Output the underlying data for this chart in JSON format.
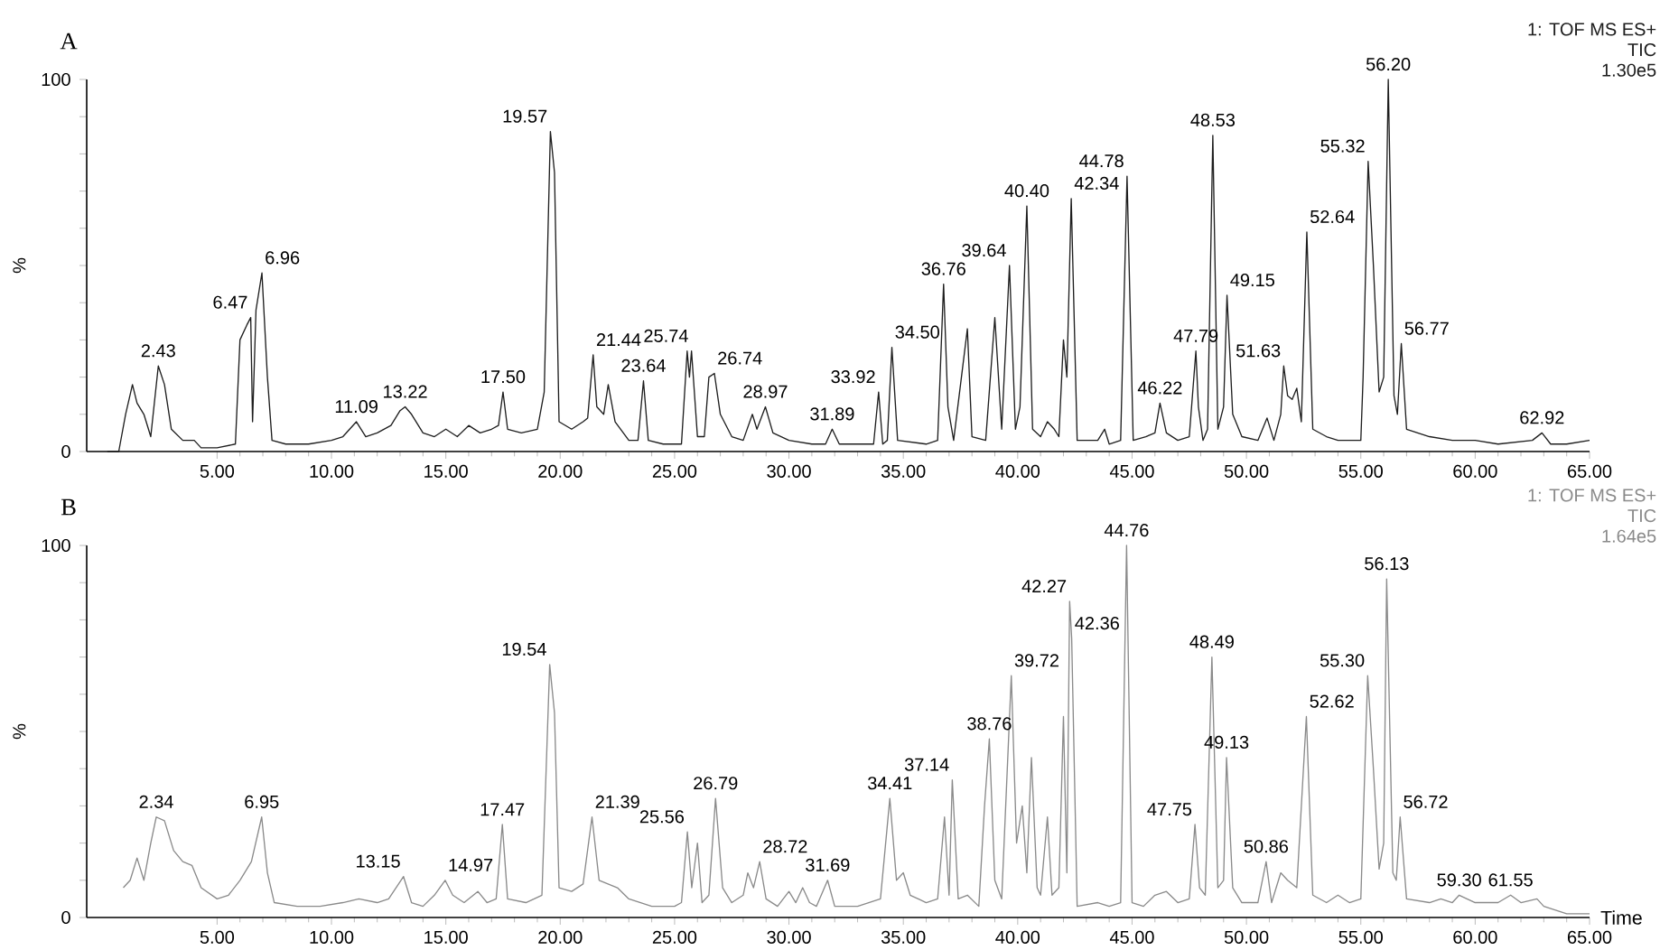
{
  "chart_data": [
    {
      "type": "line",
      "title": "A",
      "ylabel": "%",
      "color": "#1e1e1e",
      "xlim": [
        -0.7,
        65
      ],
      "ylim": [
        0,
        100
      ],
      "xticks": [
        {
          "value": 5,
          "label": "5.00"
        },
        {
          "value": 10,
          "label": "10.00"
        },
        {
          "value": 15,
          "label": "15.00"
        },
        {
          "value": 20,
          "label": "20.00"
        },
        {
          "value": 25,
          "label": "25.00"
        },
        {
          "value": 30,
          "label": "30.00"
        },
        {
          "value": 35,
          "label": "35.00"
        },
        {
          "value": 40,
          "label": "40.00"
        },
        {
          "value": 45,
          "label": "45.00"
        },
        {
          "value": 50,
          "label": "50.00"
        },
        {
          "value": 55,
          "label": "55.00"
        },
        {
          "value": 60,
          "label": "60.00"
        },
        {
          "value": 65,
          "label": "65.00"
        }
      ],
      "yticks": [
        0,
        {
          "value": 10,
          "label": null
        },
        {
          "value": 20,
          "label": null
        },
        {
          "value": 30,
          "label": null
        },
        {
          "value": 40,
          "label": null
        },
        {
          "value": 50,
          "label": null
        },
        {
          "value": 60,
          "label": null
        },
        {
          "value": 70,
          "label": null
        },
        {
          "value": 80,
          "label": null
        },
        {
          "value": 90,
          "label": null
        },
        100
      ],
      "x": [
        0.2,
        0.7,
        1.0,
        1.3,
        1.5,
        1.8,
        2.1,
        2.43,
        2.7,
        3.0,
        3.5,
        4.0,
        4.3,
        5.0,
        5.8,
        6.0,
        6.3,
        6.47,
        6.55,
        6.7,
        6.96,
        7.2,
        7.4,
        8.0,
        9.0,
        10.0,
        10.5,
        11.09,
        11.5,
        12.0,
        12.6,
        13.0,
        13.22,
        13.5,
        14.0,
        14.5,
        15.0,
        15.5,
        16.0,
        16.5,
        17.0,
        17.3,
        17.5,
        17.7,
        18.3,
        19.0,
        19.3,
        19.57,
        19.75,
        19.95,
        20.5,
        21.0,
        21.2,
        21.44,
        21.6,
        21.9,
        22.1,
        22.4,
        23.0,
        23.4,
        23.64,
        23.85,
        24.5,
        25.3,
        25.55,
        25.65,
        25.74,
        26.0,
        26.3,
        26.5,
        26.74,
        27.0,
        27.5,
        28.0,
        28.4,
        28.6,
        28.97,
        29.3,
        30.0,
        31.0,
        31.6,
        31.89,
        32.2,
        33.0,
        33.7,
        33.92,
        34.1,
        34.3,
        34.5,
        34.75,
        36.0,
        36.5,
        36.76,
        36.95,
        37.2,
        37.8,
        38.0,
        38.6,
        39.0,
        39.3,
        39.64,
        39.9,
        40.1,
        40.4,
        40.65,
        41.0,
        41.3,
        41.6,
        41.8,
        42.0,
        42.15,
        42.34,
        42.6,
        43.5,
        43.8,
        44.0,
        44.5,
        44.78,
        45.05,
        45.6,
        46.0,
        46.22,
        46.5,
        47.0,
        47.5,
        47.79,
        47.9,
        48.1,
        48.3,
        48.53,
        48.75,
        49.0,
        49.15,
        49.4,
        49.8,
        50.5,
        50.9,
        51.2,
        51.5,
        51.63,
        51.8,
        52.0,
        52.2,
        52.4,
        52.64,
        52.9,
        53.5,
        54.0,
        55.0,
        55.1,
        55.32,
        55.55,
        55.8,
        56.0,
        56.2,
        56.45,
        56.6,
        56.77,
        57.0,
        58.0,
        59.0,
        60.0,
        61.0,
        62.5,
        62.92,
        63.3,
        64.0,
        65.0
      ],
      "values": [
        0,
        0,
        10,
        18,
        13,
        10,
        4,
        23,
        18,
        6,
        3,
        3,
        1,
        1,
        2,
        30,
        34,
        36,
        8,
        38,
        48,
        20,
        3,
        2,
        2,
        3,
        4,
        8,
        4,
        5,
        7,
        11,
        12,
        10,
        5,
        4,
        6,
        4,
        7,
        5,
        6,
        7,
        16,
        6,
        5,
        6,
        16,
        86,
        75,
        8,
        6,
        8,
        9,
        26,
        12,
        10,
        18,
        8,
        3,
        3,
        19,
        3,
        2,
        2,
        27,
        20,
        27,
        4,
        4,
        20,
        21,
        10,
        4,
        3,
        10,
        6,
        12,
        5,
        3,
        2,
        2,
        6,
        2,
        2,
        2,
        16,
        2,
        3,
        28,
        3,
        2,
        3,
        45,
        12,
        3,
        33,
        4,
        3,
        36,
        6,
        50,
        6,
        12,
        66,
        6,
        4,
        8,
        6,
        4,
        30,
        20,
        68,
        3,
        3,
        6,
        2,
        3,
        74,
        3,
        4,
        5,
        13,
        5,
        3,
        4,
        27,
        12,
        3,
        6,
        85,
        6,
        12,
        42,
        10,
        4,
        3,
        9,
        3,
        10,
        23,
        15,
        14,
        17,
        8,
        59,
        6,
        4,
        3,
        3,
        20,
        78,
        50,
        16,
        20,
        100,
        15,
        10,
        29,
        6,
        4,
        3,
        3,
        2,
        3,
        5,
        2,
        2,
        3
      ],
      "annotations": [
        "1: TOF MS ES+",
        "TIC",
        "1.30e5",
        {
          "text": "2.43",
          "x": 2.43,
          "y": 23
        },
        {
          "text": "6.47",
          "x": 6.47,
          "y": 36
        },
        {
          "text": "6.96",
          "x": 6.96,
          "y": 48
        },
        {
          "text": "11.09",
          "x": 11.09,
          "y": 8
        },
        {
          "text": "13.22",
          "x": 13.22,
          "y": 12
        },
        {
          "text": "17.50",
          "x": 17.5,
          "y": 16
        },
        {
          "text": "19.57",
          "x": 19.57,
          "y": 86
        },
        {
          "text": "21.44",
          "x": 21.44,
          "y": 26
        },
        {
          "text": "23.64",
          "x": 23.64,
          "y": 19
        },
        {
          "text": "25.74",
          "x": 25.74,
          "y": 27
        },
        {
          "text": "26.74",
          "x": 26.74,
          "y": 21
        },
        {
          "text": "28.97",
          "x": 28.97,
          "y": 12
        },
        {
          "text": "31.89",
          "x": 31.89,
          "y": 6
        },
        {
          "text": "33.92",
          "x": 33.92,
          "y": 16
        },
        {
          "text": "34.50",
          "x": 34.5,
          "y": 28
        },
        {
          "text": "36.76",
          "x": 36.76,
          "y": 45
        },
        {
          "text": "39.64",
          "x": 39.64,
          "y": 50
        },
        {
          "text": "40.40",
          "x": 40.4,
          "y": 66
        },
        {
          "text": "42.34",
          "x": 42.34,
          "y": 68
        },
        {
          "text": "44.78",
          "x": 44.78,
          "y": 74
        },
        {
          "text": "46.22",
          "x": 46.22,
          "y": 13
        },
        {
          "text": "47.79",
          "x": 47.79,
          "y": 27
        },
        {
          "text": "48.53",
          "x": 48.53,
          "y": 85
        },
        {
          "text": "49.15",
          "x": 49.15,
          "y": 42
        },
        {
          "text": "51.63",
          "x": 51.63,
          "y": 23
        },
        {
          "text": "52.64",
          "x": 52.64,
          "y": 59
        },
        {
          "text": "55.32",
          "x": 55.32,
          "y": 78
        },
        {
          "text": "56.20",
          "x": 56.2,
          "y": 100
        },
        {
          "text": "56.77",
          "x": 56.77,
          "y": 29
        },
        {
          "text": "62.92",
          "x": 62.92,
          "y": 5
        }
      ]
    },
    {
      "type": "line",
      "title": "B",
      "ylabel": "%",
      "xlabel": "Time",
      "color": "#8a8a8a",
      "xlim": [
        -0.7,
        65
      ],
      "ylim": [
        0,
        100
      ],
      "xticks": [
        {
          "value": 5,
          "label": "5.00"
        },
        {
          "value": 10,
          "label": "10.00"
        },
        {
          "value": 15,
          "label": "15.00"
        },
        {
          "value": 20,
          "label": "20.00"
        },
        {
          "value": 25,
          "label": "25.00"
        },
        {
          "value": 30,
          "label": "30.00"
        },
        {
          "value": 35,
          "label": "35.00"
        },
        {
          "value": 40,
          "label": "40.00"
        },
        {
          "value": 45,
          "label": "45.00"
        },
        {
          "value": 50,
          "label": "50.00"
        },
        {
          "value": 55,
          "label": "55.00"
        },
        {
          "value": 60,
          "label": "60.00"
        },
        {
          "value": 65,
          "label": "65.00"
        }
      ],
      "yticks": [
        0,
        {
          "value": 10,
          "label": null
        },
        {
          "value": 20,
          "label": null
        },
        {
          "value": 30,
          "label": null
        },
        {
          "value": 40,
          "label": null
        },
        {
          "value": 50,
          "label": null
        },
        {
          "value": 60,
          "label": null
        },
        {
          "value": 70,
          "label": null
        },
        {
          "value": 80,
          "label": null
        },
        {
          "value": 90,
          "label": null
        },
        100
      ],
      "x": [
        0.9,
        1.2,
        1.5,
        1.8,
        2.1,
        2.34,
        2.7,
        3.1,
        3.5,
        3.9,
        4.3,
        5.0,
        5.5,
        6.0,
        6.5,
        6.95,
        7.2,
        7.5,
        8.5,
        9.5,
        10.5,
        11.2,
        12.0,
        12.5,
        13.15,
        13.5,
        14.0,
        14.5,
        14.97,
        15.3,
        15.8,
        16.4,
        16.8,
        17.2,
        17.47,
        17.7,
        18.5,
        19.2,
        19.54,
        19.75,
        19.95,
        20.5,
        21.0,
        21.39,
        21.7,
        22.5,
        23.0,
        24.0,
        25.0,
        25.3,
        25.56,
        25.75,
        26.0,
        26.2,
        26.5,
        26.79,
        27.1,
        27.5,
        28.0,
        28.2,
        28.45,
        28.72,
        29.0,
        29.5,
        30.0,
        30.3,
        30.6,
        30.9,
        31.2,
        31.69,
        32.0,
        33.0,
        34.0,
        34.41,
        34.7,
        35.0,
        35.3,
        36.0,
        36.5,
        36.8,
        37.0,
        37.14,
        37.4,
        37.8,
        38.3,
        38.55,
        38.76,
        39.0,
        39.3,
        39.72,
        39.95,
        40.2,
        40.4,
        40.6,
        40.85,
        41.0,
        41.3,
        41.5,
        41.8,
        42.0,
        42.15,
        42.27,
        42.36,
        42.6,
        43.5,
        44.0,
        44.5,
        44.76,
        45.0,
        45.5,
        46.0,
        46.5,
        47.0,
        47.5,
        47.75,
        47.95,
        48.2,
        48.49,
        48.75,
        49.0,
        49.13,
        49.4,
        49.8,
        50.5,
        50.86,
        51.1,
        51.5,
        51.8,
        52.2,
        52.62,
        52.9,
        53.5,
        54.0,
        54.5,
        55.0,
        55.3,
        55.55,
        55.8,
        56.0,
        56.13,
        56.4,
        56.55,
        56.72,
        57.0,
        58.0,
        58.5,
        59.0,
        59.3,
        60.0,
        61.0,
        61.55,
        62.0,
        62.7,
        63.0,
        64.0,
        65.0
      ],
      "values": [
        8,
        10,
        16,
        10,
        20,
        27,
        26,
        18,
        15,
        14,
        8,
        5,
        6,
        10,
        15,
        27,
        12,
        4,
        3,
        3,
        4,
        5,
        4,
        5,
        11,
        4,
        3,
        6,
        10,
        6,
        4,
        7,
        4,
        5,
        25,
        5,
        4,
        6,
        68,
        55,
        8,
        7,
        9,
        27,
        10,
        8,
        5,
        3,
        3,
        4,
        23,
        8,
        20,
        4,
        6,
        32,
        8,
        4,
        6,
        12,
        8,
        15,
        5,
        3,
        7,
        4,
        8,
        4,
        3,
        10,
        3,
        3,
        5,
        32,
        10,
        12,
        6,
        4,
        5,
        27,
        6,
        37,
        5,
        6,
        3,
        30,
        48,
        10,
        5,
        65,
        20,
        30,
        12,
        43,
        8,
        6,
        27,
        6,
        8,
        54,
        12,
        85,
        75,
        3,
        4,
        3,
        4,
        100,
        4,
        3,
        6,
        7,
        4,
        5,
        25,
        8,
        6,
        70,
        8,
        10,
        43,
        8,
        4,
        4,
        15,
        4,
        12,
        10,
        8,
        54,
        6,
        4,
        6,
        4,
        5,
        65,
        40,
        13,
        20,
        91,
        12,
        10,
        27,
        5,
        4,
        5,
        4,
        6,
        4,
        4,
        6,
        4,
        5,
        3,
        1,
        1
      ],
      "annotations": [
        "1: TOF MS ES+",
        "TIC",
        "1.64e5",
        {
          "text": "2.34",
          "x": 2.34,
          "y": 27
        },
        {
          "text": "6.95",
          "x": 6.95,
          "y": 27
        },
        {
          "text": "13.15",
          "x": 13.15,
          "y": 11
        },
        {
          "text": "14.97",
          "x": 14.97,
          "y": 10
        },
        {
          "text": "17.47",
          "x": 17.47,
          "y": 25
        },
        {
          "text": "19.54",
          "x": 19.54,
          "y": 68
        },
        {
          "text": "21.39",
          "x": 21.39,
          "y": 27
        },
        {
          "text": "25.56",
          "x": 25.56,
          "y": 23
        },
        {
          "text": "26.79",
          "x": 26.79,
          "y": 32
        },
        {
          "text": "28.72",
          "x": 28.72,
          "y": 15
        },
        {
          "text": "31.69",
          "x": 31.69,
          "y": 10
        },
        {
          "text": "34.41",
          "x": 34.41,
          "y": 32
        },
        {
          "text": "37.14",
          "x": 37.14,
          "y": 37
        },
        {
          "text": "38.76",
          "x": 38.76,
          "y": 48
        },
        {
          "text": "39.72",
          "x": 39.72,
          "y": 65
        },
        {
          "text": "42.27",
          "x": 42.27,
          "y": 85
        },
        {
          "text": "42.36",
          "x": 42.36,
          "y": 75
        },
        {
          "text": "44.76",
          "x": 44.76,
          "y": 100
        },
        {
          "text": "47.75",
          "x": 47.75,
          "y": 25
        },
        {
          "text": "48.49",
          "x": 48.49,
          "y": 70
        },
        {
          "text": "49.13",
          "x": 49.13,
          "y": 43
        },
        {
          "text": "50.86",
          "x": 50.86,
          "y": 15
        },
        {
          "text": "52.62",
          "x": 52.62,
          "y": 54
        },
        {
          "text": "55.30",
          "x": 55.3,
          "y": 65
        },
        {
          "text": "56.13",
          "x": 56.13,
          "y": 91
        },
        {
          "text": "56.72",
          "x": 56.72,
          "y": 27
        },
        {
          "text": "59.30",
          "x": 59.3,
          "y": 6
        },
        {
          "text": "61.55",
          "x": 61.55,
          "y": 6
        }
      ]
    }
  ]
}
